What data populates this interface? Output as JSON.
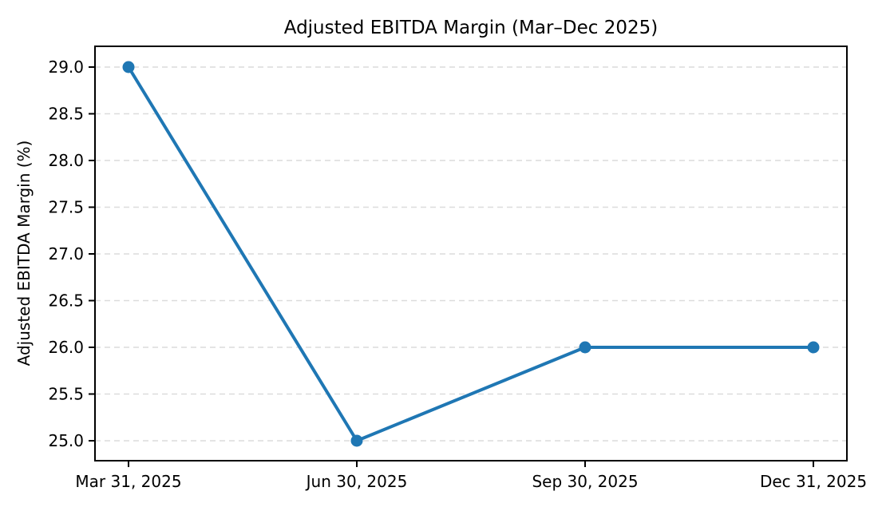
{
  "chart_data": {
    "type": "line",
    "title": "Adjusted EBITDA Margin (Mar–Dec 2025)",
    "xlabel": "",
    "ylabel": "Adjusted EBITDA Margin (%)",
    "categories": [
      "Mar 31, 2025",
      "Jun 30, 2025",
      "Sep 30, 2025",
      "Dec 31, 2025"
    ],
    "series": [
      {
        "name": "Adjusted EBITDA Margin",
        "values": [
          29.0,
          25.0,
          26.0,
          26.0
        ]
      }
    ],
    "yticks": [
      25.0,
      25.5,
      26.0,
      26.5,
      27.0,
      27.5,
      28.0,
      28.5,
      29.0
    ],
    "ytick_labels": [
      "25.0",
      "25.5",
      "26.0",
      "26.5",
      "27.0",
      "27.5",
      "28.0",
      "28.5",
      "29.0"
    ],
    "ylim": [
      24.79,
      29.21
    ],
    "grid": "horizontal-dashed",
    "legend_position": "none",
    "colors": {
      "line": "#1f77b4",
      "marker": "#1f77b4",
      "grid": "#dcdcdc",
      "axis": "#000000",
      "text": "#000000",
      "background": "#ffffff"
    }
  }
}
